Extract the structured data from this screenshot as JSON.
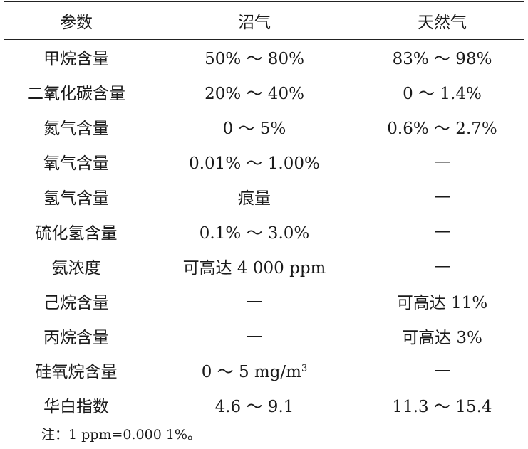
{
  "table": {
    "headers": [
      "参数",
      "沼气",
      "天然气"
    ],
    "rows": [
      {
        "param": "甲烷含量",
        "biogas": "50% ～ 80%",
        "natural_gas": "83% ～ 98%"
      },
      {
        "param": "二氧化碳含量",
        "biogas": "20% ～ 40%",
        "natural_gas": "0 ～ 1.4%"
      },
      {
        "param": "氮气含量",
        "biogas": "0 ～ 5%",
        "natural_gas": "0.6% ～ 2.7%"
      },
      {
        "param": "氧气含量",
        "biogas": "0.01% ～ 1.00%",
        "natural_gas": "—"
      },
      {
        "param": "氢气含量",
        "biogas": "痕量",
        "natural_gas": "—"
      },
      {
        "param": "硫化氢含量",
        "biogas": "0.1% ～ 3.0%",
        "natural_gas": "—"
      },
      {
        "param": "氨浓度",
        "biogas": "可高达 4 000 ppm",
        "natural_gas": "—"
      },
      {
        "param": "己烷含量",
        "biogas": "—",
        "natural_gas": "可高达 11%"
      },
      {
        "param": "丙烷含量",
        "biogas": "—",
        "natural_gas": "可高达 3%"
      },
      {
        "param": "硅氧烷含量",
        "biogas": "0 ～ 5 mg/m",
        "natural_gas": "—"
      },
      {
        "param": "华白指数",
        "biogas": "4.6 ～ 9.1",
        "natural_gas": "11.3 ～ 15.4"
      }
    ],
    "siloxane_unit_exponent": "3"
  },
  "note": "注：1 ppm=0.000 1%。"
}
